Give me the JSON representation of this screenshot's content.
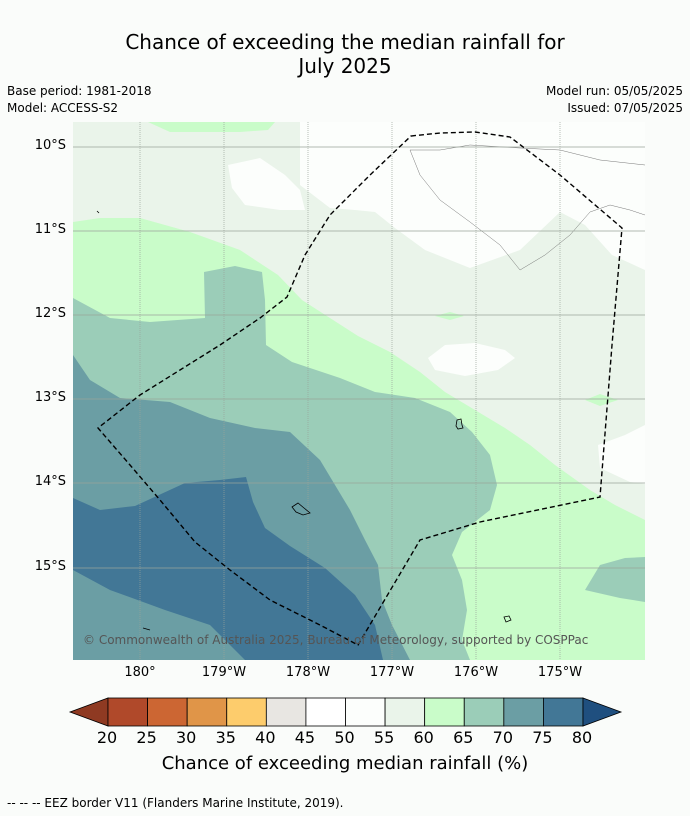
{
  "title_line1": "Chance of exceeding the median rainfall for",
  "title_line2": "July 2025",
  "base_period": "Base period: 1981-2018",
  "model": "Model: ACCESS-S2",
  "model_run": "Model run: 05/05/2025",
  "issued": "Issued: 07/05/2025",
  "copyright": "© Commonwealth of Australia 2025, Bureau of Meteorology, supported by COSPPac",
  "colorbar_title": "Chance of exceeding median rainfall (%)",
  "footnote": "--  --  -- EEZ border V11 (Flanders Marine Institute, 2019).",
  "latitude_labels": [
    "10°S",
    "11°S",
    "12°S",
    "13°S",
    "14°S",
    "15°S"
  ],
  "longitude_labels": [
    "180°",
    "179°W",
    "178°W",
    "177°W",
    "176°W",
    "175°W"
  ],
  "colorbar": {
    "ticks": [
      "20",
      "25",
      "30",
      "35",
      "40",
      "45",
      "50",
      "55",
      "60",
      "65",
      "70",
      "75",
      "80"
    ],
    "under_color": "#8f3a22",
    "over_color": "#1f4f7f",
    "colors": [
      "#b0492a",
      "#cc6633",
      "#e09548",
      "#fdcc6c",
      "#e8e6e2",
      "#ffffff",
      "#fcfefc",
      "#eaf4ea",
      "#c9fcc9",
      "#9bcdb8",
      "#6b9ea4",
      "#427796"
    ]
  },
  "map_colors": {
    "p55": "#fcfefc",
    "p60": "#eaf4ea",
    "p65": "#c9fcc9",
    "p70": "#9bcdb8",
    "p75": "#6b9ea4",
    "p80": "#427796"
  }
}
